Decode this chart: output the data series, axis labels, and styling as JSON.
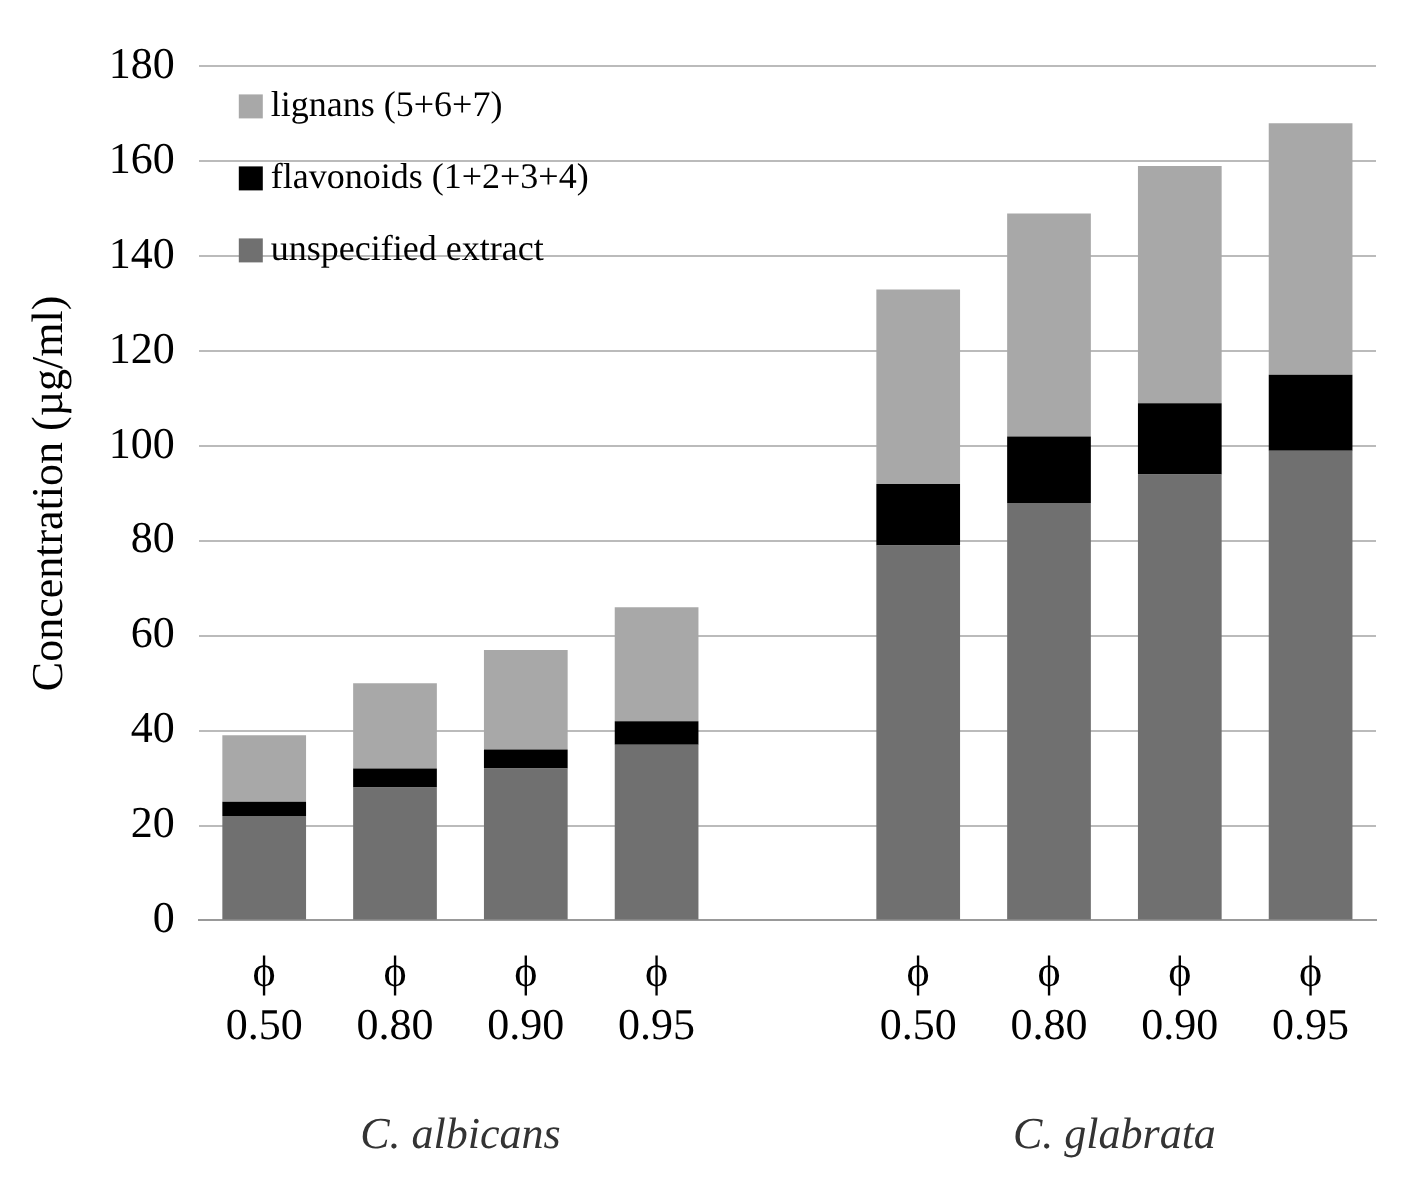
{
  "chart_data": {
    "type": "bar",
    "stacked": true,
    "ylabel": "Concentration (µg/ml)",
    "categories": [
      "ϕ\n0.50",
      "ϕ\n0.80",
      "ϕ\n0.90",
      "ϕ\n0.95",
      null,
      "ϕ\n0.50",
      "ϕ\n0.80",
      "ϕ\n0.90",
      "ϕ\n0.95"
    ],
    "series": [
      {
        "name": "unspecified extract",
        "color": "#707070",
        "values": [
          22,
          28,
          32,
          37,
          null,
          79,
          88,
          94,
          99
        ]
      },
      {
        "name": "flavonoids (1+2+3+4)",
        "color": "#000000",
        "values": [
          3,
          4,
          4,
          5,
          null,
          13,
          14,
          15,
          16
        ]
      },
      {
        "name": "lignans (5+6+7)",
        "color": "#a8a8a8",
        "values": [
          14,
          18,
          21,
          24,
          null,
          41,
          47,
          50,
          53
        ]
      }
    ],
    "ylim": [
      0,
      180
    ],
    "yticks": [
      0,
      20,
      40,
      60,
      80,
      100,
      120,
      140,
      160,
      180
    ],
    "grid": "y",
    "legend": "top left",
    "annotations": [
      "C. albicans",
      "C. glabrata"
    ]
  }
}
